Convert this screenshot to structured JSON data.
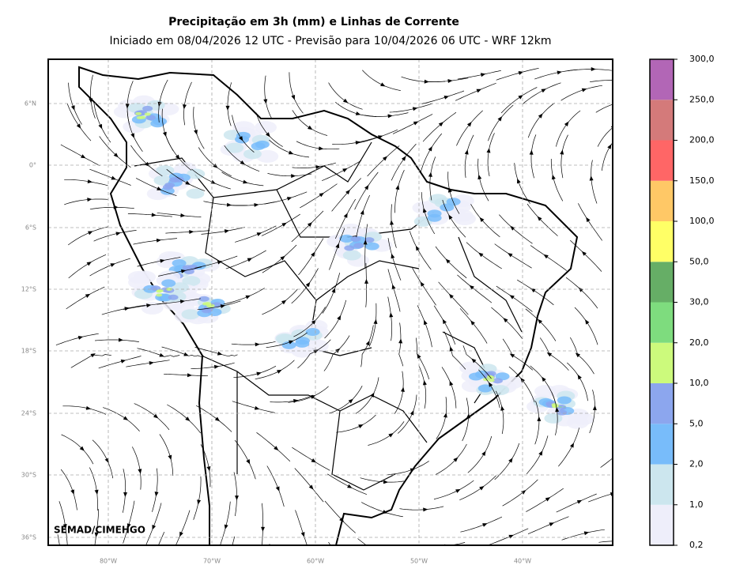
{
  "header": {
    "title": "Precipitação em 3h (mm) e Linhas de Corrente",
    "subtitle": "Iniciado em 08/04/2026 12 UTC - Previsão para 10/04/2026 06 UTC - WRF 12km"
  },
  "map": {
    "lat_labels": [
      "6°N",
      "0°",
      "6°S",
      "12°S",
      "18°S",
      "24°S",
      "30°S",
      "36°S"
    ],
    "lon_labels": [
      "80°W",
      "70°W",
      "60°W",
      "50°W",
      "40°W"
    ],
    "credit": "SEMAD/CIMEHGO"
  },
  "colorbar": {
    "labels": [
      "0,2",
      "1,0",
      "2,0",
      "5,0",
      "10,0",
      "20,0",
      "30,0",
      "50,0",
      "100,0",
      "150,0",
      "200,0",
      "250,0",
      "300,0"
    ],
    "colors": [
      "#eeeefa",
      "#cce6ee",
      "#78bcfa",
      "#8ca6ee",
      "#ccfa7c",
      "#7edc7e",
      "#66ae66",
      "#ffff66",
      "#ffc866",
      "#ff6666",
      "#d47a7a",
      "#b266b6"
    ]
  }
}
